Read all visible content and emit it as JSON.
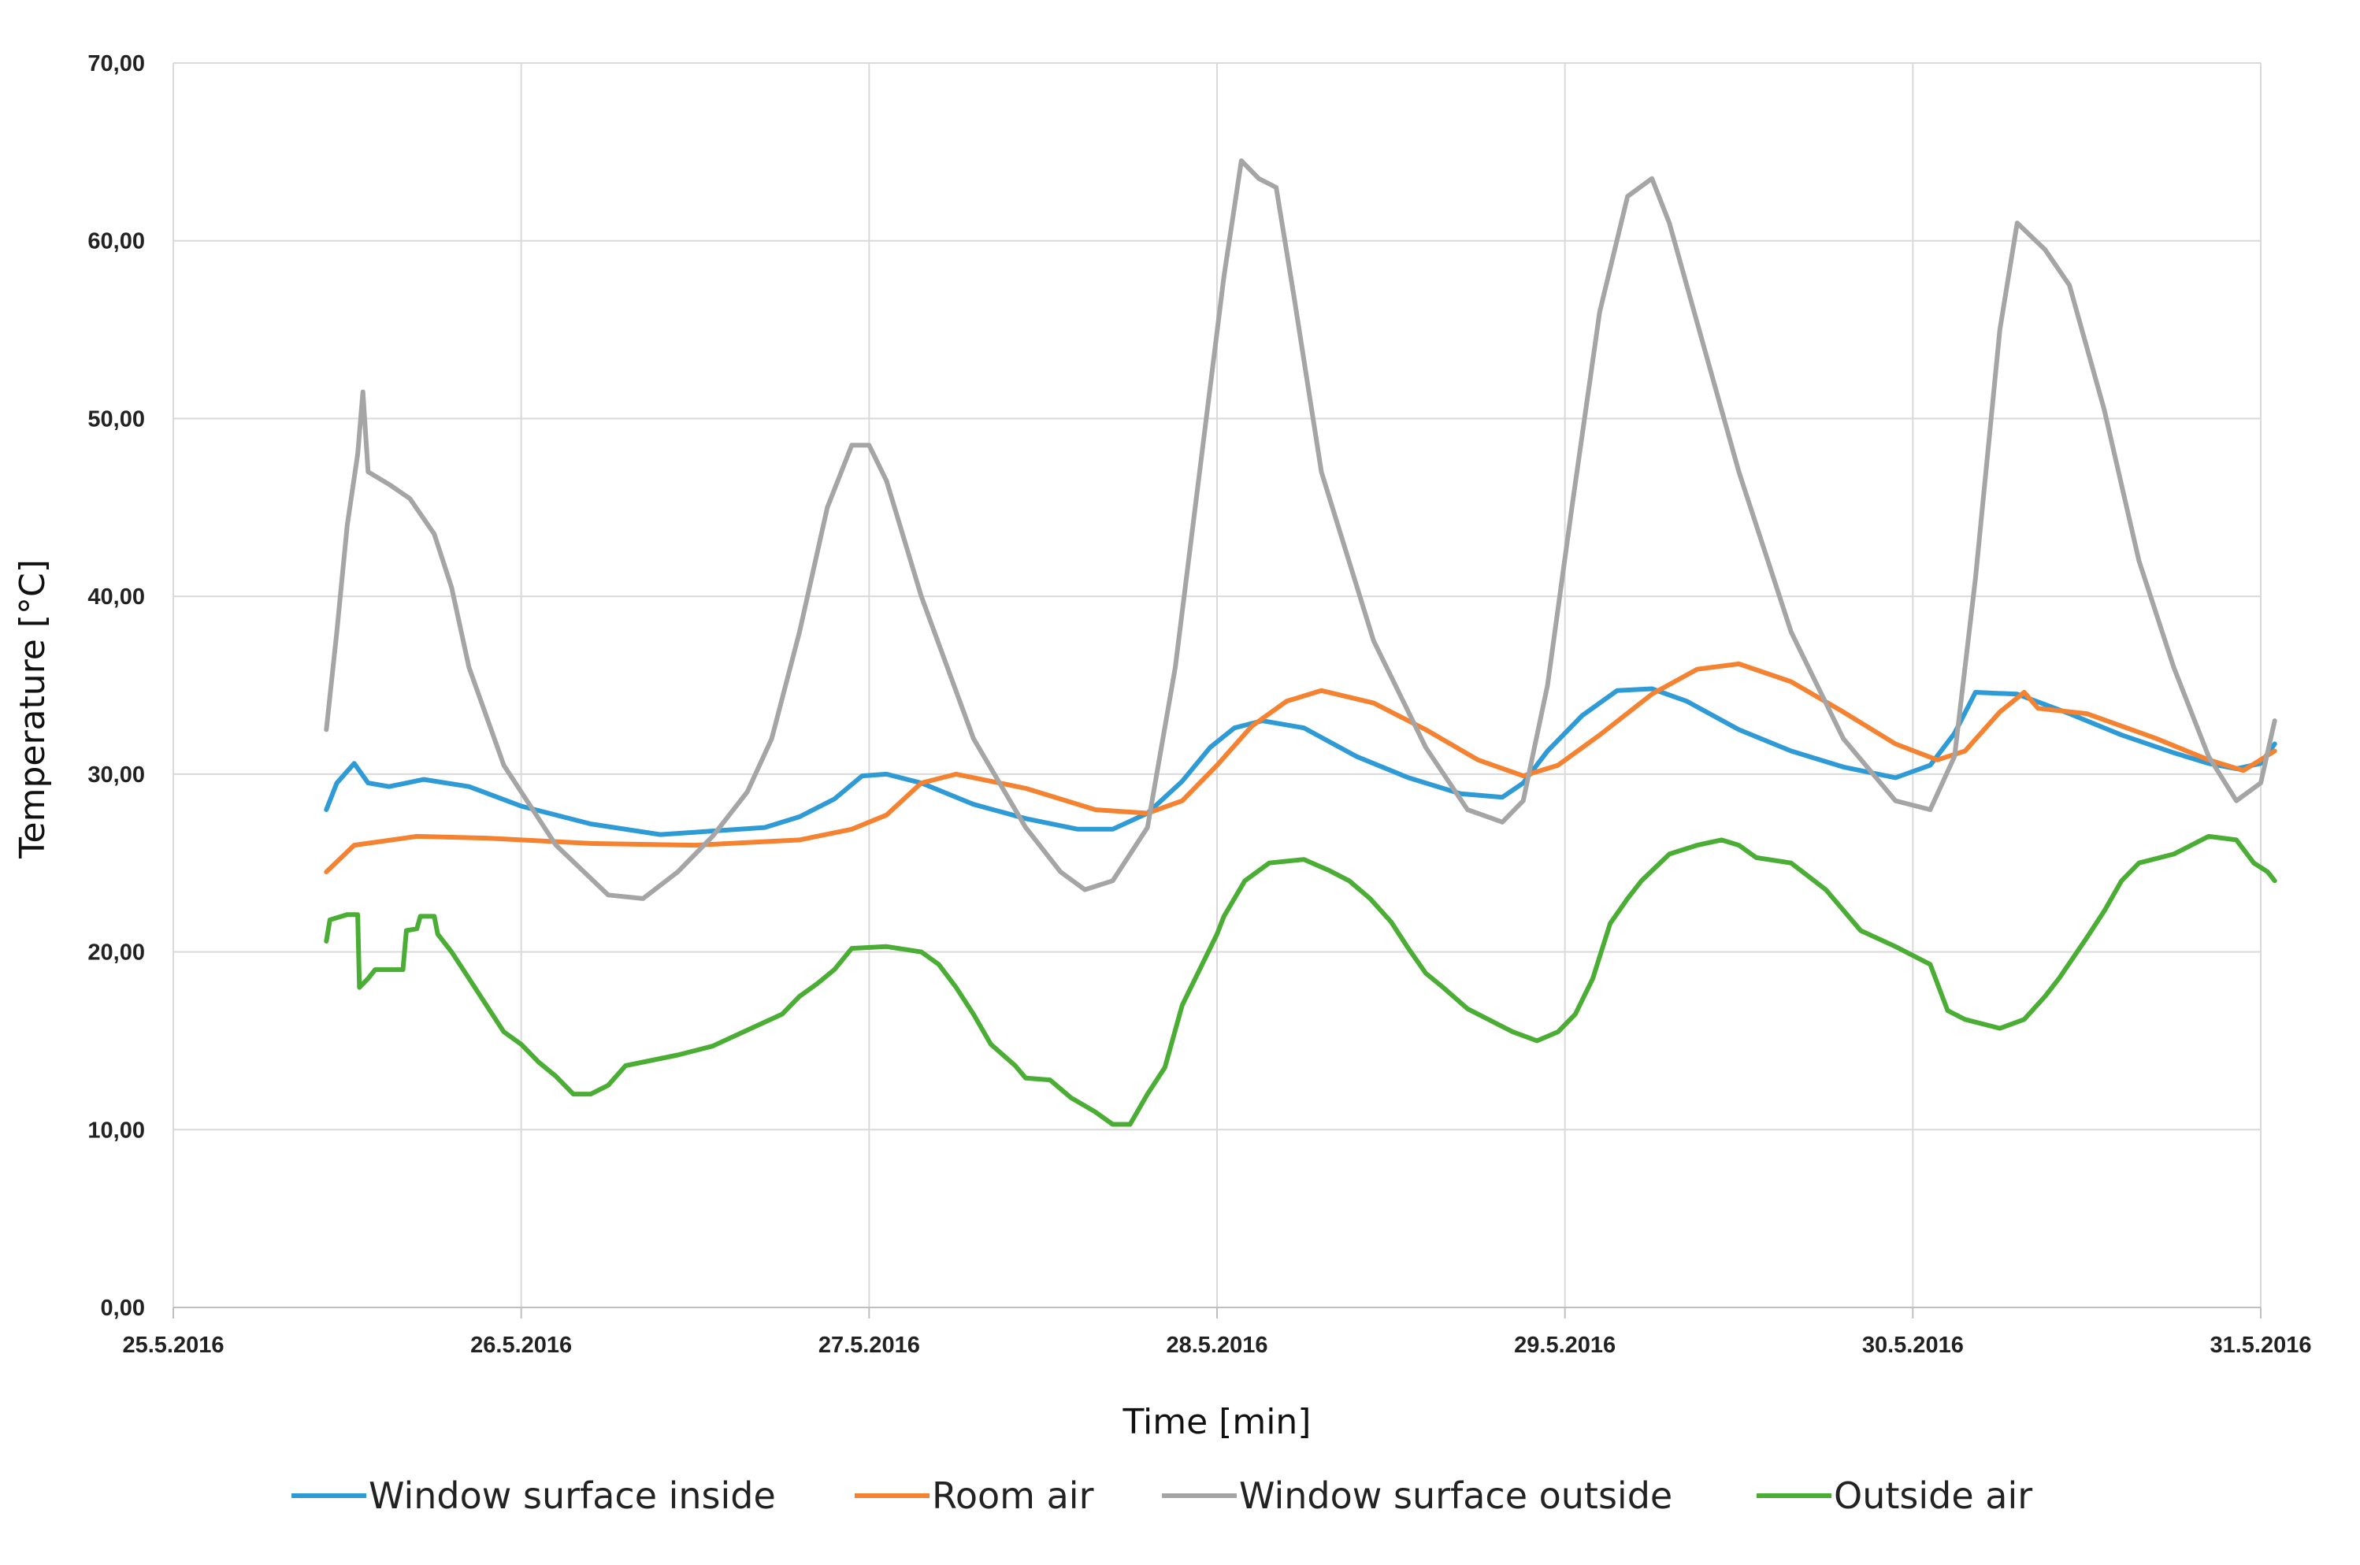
{
  "chart_data": {
    "type": "line",
    "title": "",
    "xlabel": "Time [min]",
    "ylabel": "Temperature [°C]",
    "xlim": [
      0,
      6
    ],
    "ylim": [
      0,
      70
    ],
    "grid": true,
    "legend_position": "bottom",
    "x_tick_labels": [
      "25.5.2016",
      "26.5.2016",
      "27.5.2016",
      "28.5.2016",
      "29.5.2016",
      "30.5.2016",
      "31.5.2016"
    ],
    "y_tick_labels": [
      "0,00",
      "10,00",
      "20,00",
      "30,00",
      "40,00",
      "50,00",
      "60,00",
      "70,00"
    ],
    "x_unit_note": "x in days since 25.5.2016",
    "series": [
      {
        "name": "Window surface inside",
        "color": "#2E9BD6",
        "points": [
          [
            0.44,
            28.0
          ],
          [
            0.47,
            29.5
          ],
          [
            0.52,
            30.6
          ],
          [
            0.56,
            29.5
          ],
          [
            0.62,
            29.3
          ],
          [
            0.72,
            29.7
          ],
          [
            0.85,
            29.3
          ],
          [
            1.0,
            28.2
          ],
          [
            1.2,
            27.2
          ],
          [
            1.4,
            26.6
          ],
          [
            1.55,
            26.8
          ],
          [
            1.7,
            27.0
          ],
          [
            1.8,
            27.6
          ],
          [
            1.9,
            28.6
          ],
          [
            1.98,
            29.9
          ],
          [
            2.05,
            30.0
          ],
          [
            2.15,
            29.5
          ],
          [
            2.3,
            28.3
          ],
          [
            2.45,
            27.5
          ],
          [
            2.6,
            26.9
          ],
          [
            2.7,
            26.9
          ],
          [
            2.8,
            27.8
          ],
          [
            2.9,
            29.6
          ],
          [
            2.98,
            31.5
          ],
          [
            3.05,
            32.6
          ],
          [
            3.13,
            33.0
          ],
          [
            3.25,
            32.6
          ],
          [
            3.4,
            31.0
          ],
          [
            3.55,
            29.8
          ],
          [
            3.7,
            28.9
          ],
          [
            3.82,
            28.7
          ],
          [
            3.88,
            29.5
          ],
          [
            3.95,
            31.3
          ],
          [
            4.05,
            33.3
          ],
          [
            4.15,
            34.7
          ],
          [
            4.25,
            34.8
          ],
          [
            4.35,
            34.1
          ],
          [
            4.5,
            32.5
          ],
          [
            4.65,
            31.3
          ],
          [
            4.8,
            30.4
          ],
          [
            4.95,
            29.8
          ],
          [
            5.05,
            30.5
          ],
          [
            5.12,
            32.3
          ],
          [
            5.18,
            34.6
          ],
          [
            5.3,
            34.5
          ],
          [
            5.45,
            33.4
          ],
          [
            5.6,
            32.2
          ],
          [
            5.75,
            31.2
          ],
          [
            5.85,
            30.6
          ],
          [
            5.93,
            30.3
          ],
          [
            6.0,
            30.6
          ],
          [
            6.04,
            31.7
          ]
        ]
      },
      {
        "name": "Room air",
        "color": "#F58230",
        "points": [
          [
            0.44,
            24.5
          ],
          [
            0.52,
            26.0
          ],
          [
            0.7,
            26.5
          ],
          [
            0.9,
            26.4
          ],
          [
            1.2,
            26.1
          ],
          [
            1.5,
            26.0
          ],
          [
            1.8,
            26.3
          ],
          [
            1.95,
            26.9
          ],
          [
            2.05,
            27.7
          ],
          [
            2.15,
            29.5
          ],
          [
            2.25,
            30.0
          ],
          [
            2.45,
            29.2
          ],
          [
            2.65,
            28.0
          ],
          [
            2.8,
            27.8
          ],
          [
            2.9,
            28.5
          ],
          [
            3.0,
            30.5
          ],
          [
            3.1,
            32.7
          ],
          [
            3.2,
            34.1
          ],
          [
            3.3,
            34.7
          ],
          [
            3.45,
            34.0
          ],
          [
            3.6,
            32.5
          ],
          [
            3.75,
            30.8
          ],
          [
            3.88,
            29.9
          ],
          [
            3.98,
            30.5
          ],
          [
            4.1,
            32.2
          ],
          [
            4.25,
            34.5
          ],
          [
            4.38,
            35.9
          ],
          [
            4.5,
            36.2
          ],
          [
            4.65,
            35.2
          ],
          [
            4.8,
            33.5
          ],
          [
            4.95,
            31.7
          ],
          [
            5.07,
            30.8
          ],
          [
            5.15,
            31.3
          ],
          [
            5.25,
            33.5
          ],
          [
            5.32,
            34.6
          ],
          [
            5.36,
            33.7
          ],
          [
            5.5,
            33.4
          ],
          [
            5.7,
            32.0
          ],
          [
            5.85,
            30.8
          ],
          [
            5.95,
            30.2
          ],
          [
            6.04,
            31.3
          ]
        ]
      },
      {
        "name": "Window surface outside",
        "color": "#A5A5A5",
        "points": [
          [
            0.44,
            32.5
          ],
          [
            0.47,
            38.0
          ],
          [
            0.5,
            44.0
          ],
          [
            0.53,
            48.0
          ],
          [
            0.545,
            51.5
          ],
          [
            0.56,
            47.0
          ],
          [
            0.62,
            46.3
          ],
          [
            0.68,
            45.5
          ],
          [
            0.75,
            43.5
          ],
          [
            0.8,
            40.5
          ],
          [
            0.85,
            36.0
          ],
          [
            0.95,
            30.5
          ],
          [
            1.1,
            26.0
          ],
          [
            1.25,
            23.2
          ],
          [
            1.35,
            23.0
          ],
          [
            1.45,
            24.5
          ],
          [
            1.55,
            26.5
          ],
          [
            1.65,
            29.0
          ],
          [
            1.72,
            32.0
          ],
          [
            1.8,
            38.0
          ],
          [
            1.88,
            45.0
          ],
          [
            1.95,
            48.5
          ],
          [
            2.0,
            48.5
          ],
          [
            2.05,
            46.5
          ],
          [
            2.15,
            40.0
          ],
          [
            2.3,
            32.0
          ],
          [
            2.45,
            27.0
          ],
          [
            2.55,
            24.5
          ],
          [
            2.62,
            23.5
          ],
          [
            2.7,
            24.0
          ],
          [
            2.8,
            27.0
          ],
          [
            2.88,
            36.0
          ],
          [
            2.95,
            47.0
          ],
          [
            3.02,
            58.0
          ],
          [
            3.07,
            64.5
          ],
          [
            3.12,
            63.5
          ],
          [
            3.17,
            63.0
          ],
          [
            3.22,
            57.0
          ],
          [
            3.3,
            47.0
          ],
          [
            3.45,
            37.5
          ],
          [
            3.6,
            31.5
          ],
          [
            3.72,
            28.0
          ],
          [
            3.82,
            27.3
          ],
          [
            3.88,
            28.5
          ],
          [
            3.95,
            35.0
          ],
          [
            4.02,
            45.0
          ],
          [
            4.1,
            56.0
          ],
          [
            4.18,
            62.5
          ],
          [
            4.25,
            63.5
          ],
          [
            4.3,
            61.0
          ],
          [
            4.4,
            54.0
          ],
          [
            4.5,
            47.0
          ],
          [
            4.65,
            38.0
          ],
          [
            4.8,
            32.0
          ],
          [
            4.95,
            28.5
          ],
          [
            5.05,
            28.0
          ],
          [
            5.12,
            31.0
          ],
          [
            5.18,
            41.0
          ],
          [
            5.25,
            55.0
          ],
          [
            5.3,
            61.0
          ],
          [
            5.38,
            59.5
          ],
          [
            5.45,
            57.5
          ],
          [
            5.55,
            50.5
          ],
          [
            5.65,
            42.0
          ],
          [
            5.75,
            36.0
          ],
          [
            5.85,
            31.0
          ],
          [
            5.93,
            28.5
          ],
          [
            6.0,
            29.5
          ],
          [
            6.04,
            33.0
          ]
        ]
      },
      {
        "name": "Outside air",
        "color": "#4BAE34",
        "points": [
          [
            0.44,
            20.6
          ],
          [
            0.45,
            21.8
          ],
          [
            0.5,
            22.1
          ],
          [
            0.53,
            22.1
          ],
          [
            0.535,
            18.0
          ],
          [
            0.56,
            18.5
          ],
          [
            0.58,
            19.0
          ],
          [
            0.66,
            19.0
          ],
          [
            0.67,
            21.2
          ],
          [
            0.7,
            21.3
          ],
          [
            0.71,
            22.0
          ],
          [
            0.75,
            22.0
          ],
          [
            0.76,
            21.0
          ],
          [
            0.8,
            20.0
          ],
          [
            0.85,
            18.5
          ],
          [
            0.9,
            17.0
          ],
          [
            0.95,
            15.5
          ],
          [
            1.0,
            14.8
          ],
          [
            1.05,
            13.8
          ],
          [
            1.1,
            13.0
          ],
          [
            1.15,
            12.0
          ],
          [
            1.2,
            12.0
          ],
          [
            1.25,
            12.5
          ],
          [
            1.3,
            13.6
          ],
          [
            1.35,
            13.8
          ],
          [
            1.45,
            14.2
          ],
          [
            1.55,
            14.7
          ],
          [
            1.65,
            15.6
          ],
          [
            1.75,
            16.5
          ],
          [
            1.8,
            17.5
          ],
          [
            1.85,
            18.2
          ],
          [
            1.9,
            19.0
          ],
          [
            1.95,
            20.2
          ],
          [
            2.05,
            20.3
          ],
          [
            2.15,
            20.0
          ],
          [
            2.2,
            19.3
          ],
          [
            2.25,
            18.0
          ],
          [
            2.3,
            16.5
          ],
          [
            2.35,
            14.8
          ],
          [
            2.42,
            13.6
          ],
          [
            2.45,
            12.9
          ],
          [
            2.52,
            12.8
          ],
          [
            2.58,
            11.8
          ],
          [
            2.65,
            11.0
          ],
          [
            2.7,
            10.3
          ],
          [
            2.75,
            10.3
          ],
          [
            2.8,
            12.0
          ],
          [
            2.85,
            13.5
          ],
          [
            2.9,
            17.0
          ],
          [
            2.95,
            19.0
          ],
          [
            3.0,
            21.0
          ],
          [
            3.02,
            22.0
          ],
          [
            3.08,
            24.0
          ],
          [
            3.15,
            25.0
          ],
          [
            3.25,
            25.2
          ],
          [
            3.32,
            24.6
          ],
          [
            3.38,
            24.0
          ],
          [
            3.44,
            23.0
          ],
          [
            3.5,
            21.7
          ],
          [
            3.55,
            20.2
          ],
          [
            3.6,
            18.8
          ],
          [
            3.65,
            18.0
          ],
          [
            3.72,
            16.8
          ],
          [
            3.78,
            16.2
          ],
          [
            3.85,
            15.5
          ],
          [
            3.92,
            15.0
          ],
          [
            3.98,
            15.5
          ],
          [
            4.03,
            16.5
          ],
          [
            4.08,
            18.5
          ],
          [
            4.13,
            21.6
          ],
          [
            4.18,
            23.0
          ],
          [
            4.22,
            24.0
          ],
          [
            4.3,
            25.5
          ],
          [
            4.38,
            26.0
          ],
          [
            4.45,
            26.3
          ],
          [
            4.5,
            26.0
          ],
          [
            4.55,
            25.3
          ],
          [
            4.65,
            25.0
          ],
          [
            4.75,
            23.5
          ],
          [
            4.85,
            21.2
          ],
          [
            4.95,
            20.3
          ],
          [
            5.05,
            19.3
          ],
          [
            5.1,
            16.7
          ],
          [
            5.15,
            16.2
          ],
          [
            5.25,
            15.7
          ],
          [
            5.32,
            16.2
          ],
          [
            5.38,
            17.5
          ],
          [
            5.42,
            18.5
          ],
          [
            5.5,
            20.8
          ],
          [
            5.55,
            22.3
          ],
          [
            5.6,
            24.0
          ],
          [
            5.65,
            25.0
          ],
          [
            5.75,
            25.5
          ],
          [
            5.85,
            26.5
          ],
          [
            5.93,
            26.3
          ],
          [
            5.98,
            25.0
          ],
          [
            6.02,
            24.5
          ],
          [
            6.04,
            24.0
          ]
        ]
      }
    ]
  }
}
